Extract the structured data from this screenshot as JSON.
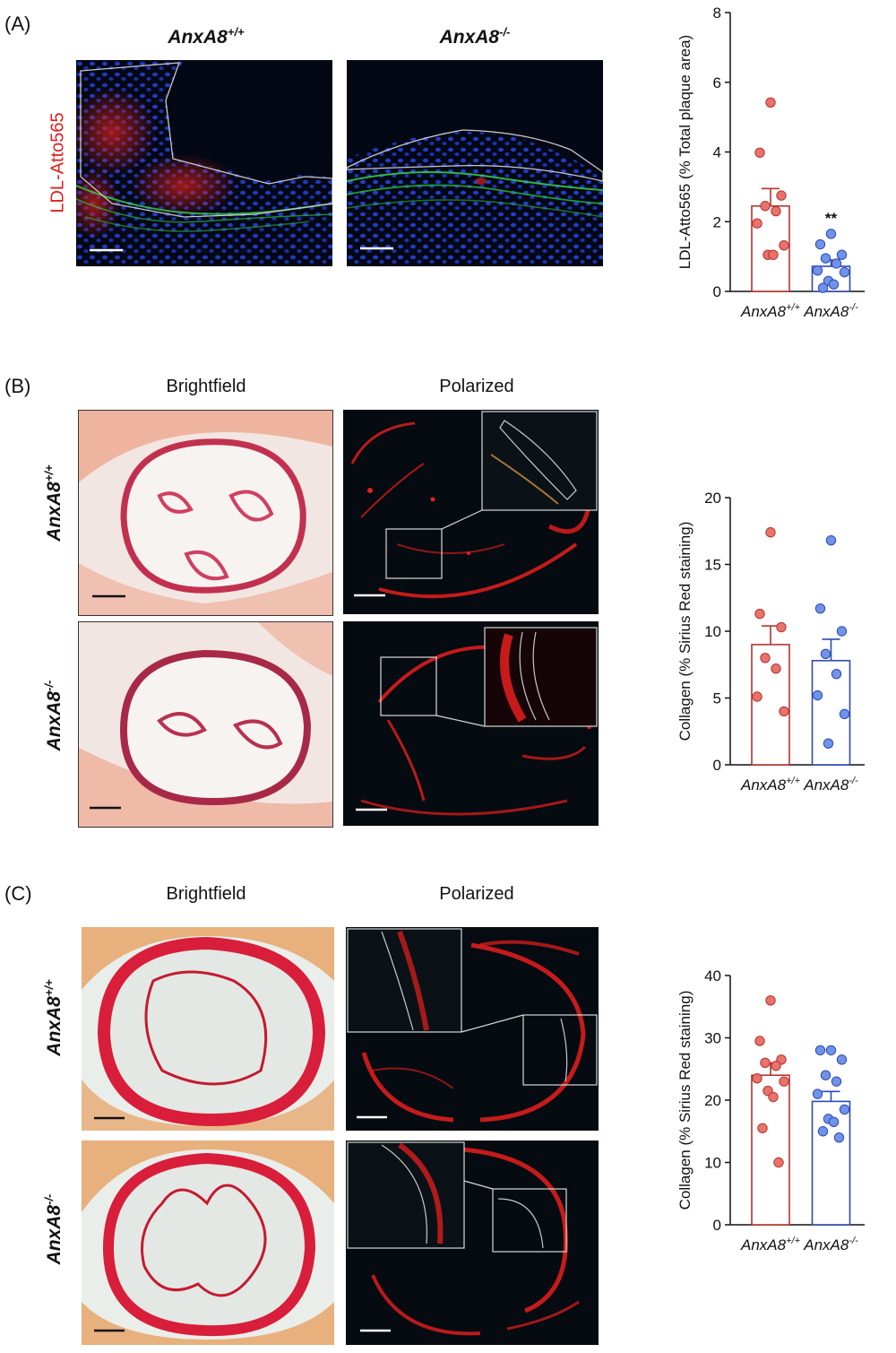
{
  "panels": {
    "A": {
      "letter": "(A)",
      "col_head_wt": "AnxA8",
      "col_head_wt_sup": "+/+",
      "col_head_ko": "AnxA8",
      "col_head_ko_sup": "-/-",
      "stain_label": "LDL-Atto565"
    },
    "B": {
      "letter": "(B)",
      "col_head_bf": "Brightfield",
      "col_head_pol": "Polarized",
      "row_head_wt": "AnxA8",
      "row_head_wt_sup": "+/+",
      "row_head_ko": "AnxA8",
      "row_head_ko_sup": "-/-"
    },
    "C": {
      "letter": "(C)",
      "col_head_bf": "Brightfield",
      "col_head_pol": "Polarized",
      "row_head_wt": "AnxA8",
      "row_head_wt_sup": "+/+",
      "row_head_ko": "AnxA8",
      "row_head_ko_sup": "-/-"
    }
  },
  "colors": {
    "wt": "#b5332e",
    "wt_point": "#e8726c",
    "ko": "#2f49b8",
    "ko_point": "#6f93e6",
    "stain_label": "#e01e1e"
  },
  "chart_data": [
    {
      "id": "A",
      "type": "bar",
      "categories": [
        "AnxA8+/+",
        "AnxA8-/-"
      ],
      "category_base": [
        "AnxA8",
        "AnxA8"
      ],
      "category_sup": [
        "+/+",
        "-/-"
      ],
      "values": [
        2.45,
        0.72
      ],
      "sem": [
        0.5,
        0.18
      ],
      "points": [
        [
          5.42,
          3.98,
          2.75,
          2.45,
          2.3,
          1.95,
          1.32,
          1.05,
          1.05
        ],
        [
          1.65,
          1.35,
          1.05,
          0.95,
          0.8,
          0.6,
          0.55,
          0.3,
          0.2,
          0.1
        ]
      ],
      "annotations": [
        {
          "category_index": 1,
          "text": "**"
        }
      ],
      "ylabel": "LDL-Atto565 (% Total plaque area)",
      "ylim": [
        0,
        8
      ],
      "yticks": [
        0,
        2,
        4,
        6,
        8
      ]
    },
    {
      "id": "B",
      "type": "bar",
      "categories": [
        "AnxA8+/+",
        "AnxA8-/-"
      ],
      "category_base": [
        "AnxA8",
        "AnxA8"
      ],
      "category_sup": [
        "+/+",
        "-/-"
      ],
      "values": [
        9.0,
        7.8
      ],
      "sem": [
        1.4,
        1.6
      ],
      "points": [
        [
          17.4,
          11.3,
          10.3,
          8.0,
          7.2,
          5.1,
          4.0
        ],
        [
          16.8,
          11.7,
          10.0,
          8.3,
          6.8,
          5.2,
          3.8,
          1.6
        ]
      ],
      "annotations": [],
      "ylabel": "Collagen (% Sirius Red staining)",
      "ylim": [
        0,
        20
      ],
      "yticks": [
        0,
        5,
        10,
        15,
        20
      ]
    },
    {
      "id": "C",
      "type": "bar",
      "categories": [
        "AnxA8+/+",
        "AnxA8-/-"
      ],
      "category_base": [
        "AnxA8",
        "AnxA8"
      ],
      "category_sup": [
        "+/+",
        "-/-"
      ],
      "values": [
        24.0,
        19.8
      ],
      "sem": [
        2.0,
        1.6
      ],
      "points": [
        [
          36.0,
          29.5,
          26.5,
          26.0,
          25.5,
          23.5,
          23.0,
          21.5,
          20.5,
          15.5,
          10.0
        ],
        [
          28.0,
          28.0,
          26.5,
          24.0,
          23.0,
          21.0,
          18.5,
          17.0,
          16.5,
          15.0,
          14.0
        ]
      ],
      "annotations": [],
      "ylabel": "Collagen (% Sirius Red staining)",
      "ylim": [
        0,
        40
      ],
      "yticks": [
        0,
        10,
        20,
        30,
        40
      ]
    }
  ]
}
